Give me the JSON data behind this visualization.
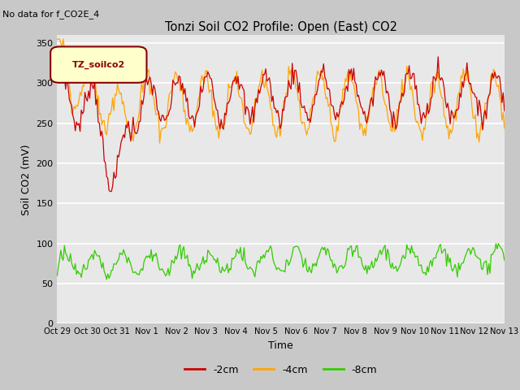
{
  "title": "Tonzi Soil CO2 Profile: Open (East) CO2",
  "subtitle": "No data for f_CO2E_4",
  "ylabel": "Soil CO2 (mV)",
  "xlabel": "Time",
  "legend_label": "TZ_soilco2",
  "series_labels": [
    "-2cm",
    "-4cm",
    "-8cm"
  ],
  "series_colors": [
    "#cc0000",
    "#ffa500",
    "#33cc00"
  ],
  "ylim": [
    0,
    360
  ],
  "yticks": [
    0,
    50,
    100,
    150,
    200,
    250,
    300,
    350
  ],
  "xtick_labels": [
    "Oct 29",
    "Oct 30",
    "Oct 31",
    "Nov 1",
    "Nov 2",
    "Nov 3",
    "Nov 4",
    "Nov 5",
    "Nov 6",
    "Nov 7",
    "Nov 8",
    "Nov 9",
    "Nov 10",
    "Nov 11",
    "Nov 12",
    "Nov 13"
  ],
  "plot_bg_color": "#e8e8e8",
  "fig_bg_color": "#c8c8c8",
  "grid_color": "#ffffff",
  "legend_box_facecolor": "#ffffcc",
  "legend_box_edgecolor": "#8b0000",
  "legend_text_color": "#8b0000",
  "n_days": 15.5,
  "n_points": 372
}
